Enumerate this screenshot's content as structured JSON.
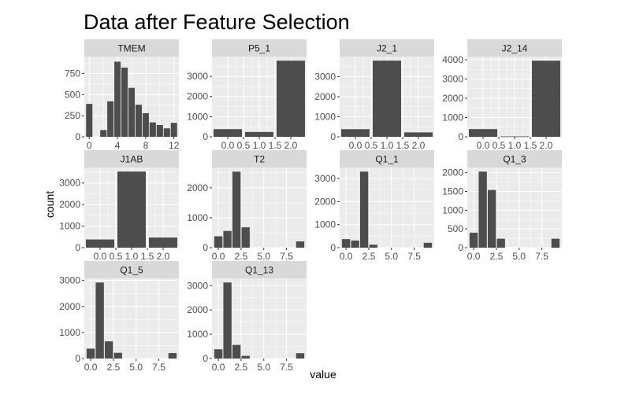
{
  "title": "Data after Feature Selection",
  "chart_data": {
    "type": "bar",
    "title": "Data after Feature Selection",
    "xlabel": "value",
    "ylabel": "count",
    "grid": true,
    "legend": "none",
    "colors": {
      "bar": "#4d4d4d",
      "panel": "#ebebeb",
      "strip": "#d9d9d9",
      "grid": "#ffffff"
    },
    "facets": [
      {
        "name": "TMEM",
        "x": [
          0,
          1,
          2,
          3,
          4,
          5,
          6,
          7,
          8,
          9,
          10,
          11,
          12
        ],
        "values": [
          390,
          0,
          80,
          420,
          890,
          820,
          580,
          380,
          280,
          170,
          140,
          100,
          165
        ],
        "xlim": [
          -0.7,
          12.7
        ],
        "xticks": [
          0,
          4,
          8,
          12
        ],
        "xtick_labels": [
          "0",
          "4",
          "8",
          "12"
        ],
        "ylim": [
          0,
          950
        ],
        "yticks": [
          0,
          250,
          500,
          750
        ],
        "ytick_labels": [
          "0",
          "250",
          "500",
          "750"
        ]
      },
      {
        "name": "P5_1",
        "x": [
          0,
          1,
          2
        ],
        "values": [
          380,
          240,
          3780
        ],
        "xlim": [
          -0.5,
          2.5
        ],
        "xticks": [
          0,
          0.5,
          1,
          1.5,
          2
        ],
        "xtick_labels": [
          "0.0",
          "0.5",
          "1.0",
          "1.5",
          "2.0"
        ],
        "ylim": [
          0,
          3980
        ],
        "yticks": [
          0,
          1000,
          2000,
          3000
        ],
        "ytick_labels": [
          "0",
          "1000",
          "2000",
          "3000"
        ]
      },
      {
        "name": "J2_1",
        "x": [
          0,
          1,
          2
        ],
        "values": [
          380,
          3800,
          220
        ],
        "xlim": [
          -0.5,
          2.5
        ],
        "xticks": [
          0,
          0.5,
          1,
          1.5,
          2
        ],
        "xtick_labels": [
          "0.0",
          "0.5",
          "1.0",
          "1.5",
          "2.0"
        ],
        "ylim": [
          0,
          4000
        ],
        "yticks": [
          0,
          1000,
          2000,
          3000
        ],
        "ytick_labels": [
          "0",
          "1000",
          "2000",
          "3000"
        ]
      },
      {
        "name": "J2_14",
        "x": [
          0,
          1,
          2
        ],
        "values": [
          400,
          20,
          3950
        ],
        "xlim": [
          -0.5,
          2.5
        ],
        "xticks": [
          0,
          0.5,
          1,
          1.5,
          2
        ],
        "xtick_labels": [
          "0.0",
          "0.5",
          "1.0",
          "1.5",
          "2.0"
        ],
        "ylim": [
          0,
          4160
        ],
        "yticks": [
          0,
          1000,
          2000,
          3000,
          4000
        ],
        "ytick_labels": [
          "0",
          "1000",
          "2000",
          "3000",
          "4000"
        ]
      },
      {
        "name": "J1AB",
        "x": [
          0,
          1,
          2
        ],
        "values": [
          380,
          3530,
          470
        ],
        "xlim": [
          -0.5,
          2.5
        ],
        "xticks": [
          0,
          0.5,
          1,
          1.5,
          2
        ],
        "xtick_labels": [
          "0.0",
          "0.5",
          "1.0",
          "1.5",
          "2.0"
        ],
        "ylim": [
          0,
          3720
        ],
        "yticks": [
          0,
          1000,
          2000,
          3000
        ],
        "ytick_labels": [
          "0",
          "1000",
          "2000",
          "3000"
        ]
      },
      {
        "name": "T2",
        "x": [
          0,
          1,
          2,
          3,
          9
        ],
        "values": [
          380,
          560,
          2540,
          680,
          210
        ],
        "xlim": [
          -0.7,
          9.7
        ],
        "xticks": [
          0,
          2.5,
          5,
          7.5
        ],
        "xtick_labels": [
          "0.0",
          "2.5",
          "5.0",
          "7.5"
        ],
        "ylim": [
          0,
          2680
        ],
        "yticks": [
          0,
          1000,
          2000
        ],
        "ytick_labels": [
          "0",
          "1000",
          "2000"
        ]
      },
      {
        "name": "Q1_1",
        "x": [
          0,
          1,
          2,
          3,
          9
        ],
        "values": [
          370,
          310,
          3300,
          130,
          210
        ],
        "xlim": [
          -0.7,
          9.7
        ],
        "xticks": [
          0,
          2.5,
          5,
          7.5
        ],
        "xtick_labels": [
          "0.0",
          "2.5",
          "5.0",
          "7.5"
        ],
        "ylim": [
          0,
          3480
        ],
        "yticks": [
          0,
          1000,
          2000,
          3000
        ],
        "ytick_labels": [
          "0",
          "1000",
          "2000",
          "3000"
        ]
      },
      {
        "name": "Q1_3",
        "x": [
          0,
          1,
          2,
          3,
          9
        ],
        "values": [
          400,
          2030,
          1540,
          240,
          240
        ],
        "xlim": [
          -0.7,
          9.7
        ],
        "xticks": [
          0,
          2.5,
          5,
          7.5
        ],
        "xtick_labels": [
          "0.0",
          "2.5",
          "5.0",
          "7.5"
        ],
        "ylim": [
          0,
          2140
        ],
        "yticks": [
          0,
          500,
          1000,
          1500,
          2000
        ],
        "ytick_labels": [
          "0",
          "500",
          "1000",
          "1500",
          "2000"
        ]
      },
      {
        "name": "Q1_5",
        "x": [
          0,
          1,
          2,
          3,
          9
        ],
        "values": [
          380,
          2920,
          660,
          220,
          210
        ],
        "xlim": [
          -0.7,
          9.7
        ],
        "xticks": [
          0,
          2.5,
          5,
          7.5
        ],
        "xtick_labels": [
          "0.0",
          "2.5",
          "5.0",
          "7.5"
        ],
        "ylim": [
          0,
          3080
        ],
        "yticks": [
          0,
          1000,
          2000,
          3000
        ],
        "ytick_labels": [
          "0",
          "1000",
          "2000",
          "3000"
        ]
      },
      {
        "name": "Q1_13",
        "x": [
          0,
          1,
          2,
          3,
          9
        ],
        "values": [
          380,
          3130,
          560,
          110,
          220
        ],
        "xlim": [
          -0.7,
          9.7
        ],
        "xticks": [
          0,
          2.5,
          5,
          7.5
        ],
        "xtick_labels": [
          "0.0",
          "2.5",
          "5.0",
          "7.5"
        ],
        "ylim": [
          0,
          3300
        ],
        "yticks": [
          0,
          1000,
          2000,
          3000
        ],
        "ytick_labels": [
          "0",
          "1000",
          "2000",
          "3000"
        ]
      }
    ]
  }
}
